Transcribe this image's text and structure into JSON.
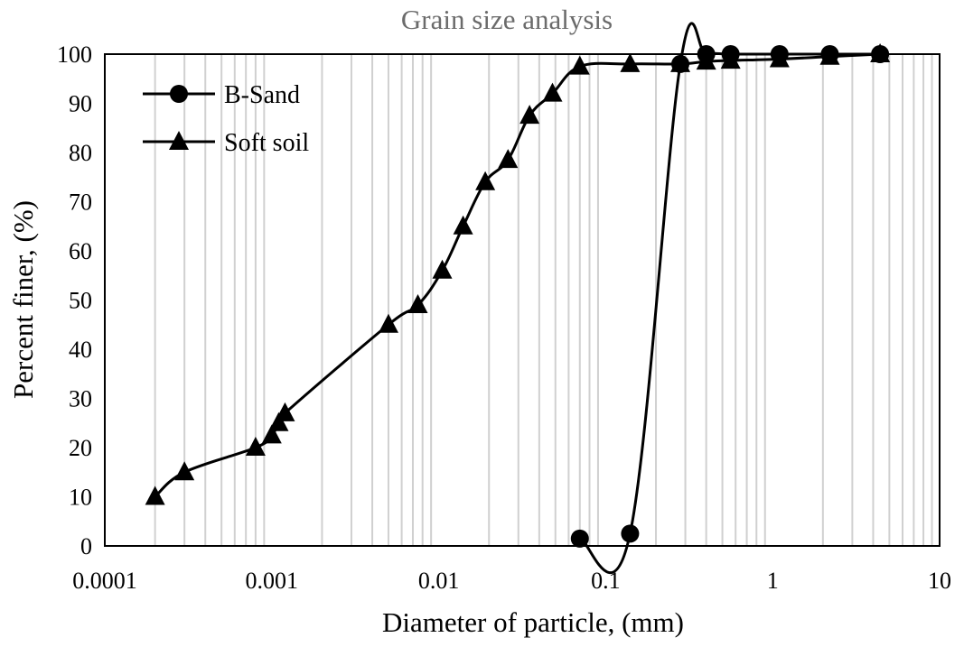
{
  "chart_data": {
    "type": "line",
    "title": "Grain size analysis",
    "xlabel": "Diameter of particle, (mm)",
    "ylabel": "Percent finer, (%)",
    "xscale": "log",
    "xlim": [
      0.0001,
      10
    ],
    "ylim": [
      0,
      100
    ],
    "xticks": [
      "0.0001",
      "0.001",
      "0.01",
      "0.1",
      "1",
      "10"
    ],
    "yticks": [
      "0",
      "10",
      "20",
      "30",
      "40",
      "50",
      "60",
      "70",
      "80",
      "90",
      "100"
    ],
    "grid": "vertical minor and major lines at log-scale positions",
    "legend_position": "top-left",
    "series": [
      {
        "name": "B-Sand",
        "marker": "circle",
        "color": "#000000",
        "x": [
          0.07,
          0.14,
          0.28,
          0.4,
          0.56,
          1.1,
          2.2,
          4.4
        ],
        "y": [
          1.5,
          2.5,
          98,
          100,
          100,
          100,
          100,
          100
        ]
      },
      {
        "name": "Soft soil",
        "marker": "triangle",
        "color": "#000000",
        "x": [
          0.0002,
          0.0003,
          0.0008,
          0.001,
          0.0011,
          0.0012,
          0.005,
          0.0075,
          0.0105,
          0.014,
          0.019,
          0.026,
          0.035,
          0.048,
          0.07,
          0.14,
          0.28,
          0.4,
          0.56,
          1.1,
          2.2,
          4.4
        ],
        "y": [
          10,
          15,
          20,
          22.5,
          25,
          27,
          45,
          49,
          56,
          65,
          74,
          78.5,
          87.5,
          92,
          97.5,
          98,
          98,
          98.5,
          98.7,
          99,
          99.5,
          100
        ]
      }
    ]
  }
}
